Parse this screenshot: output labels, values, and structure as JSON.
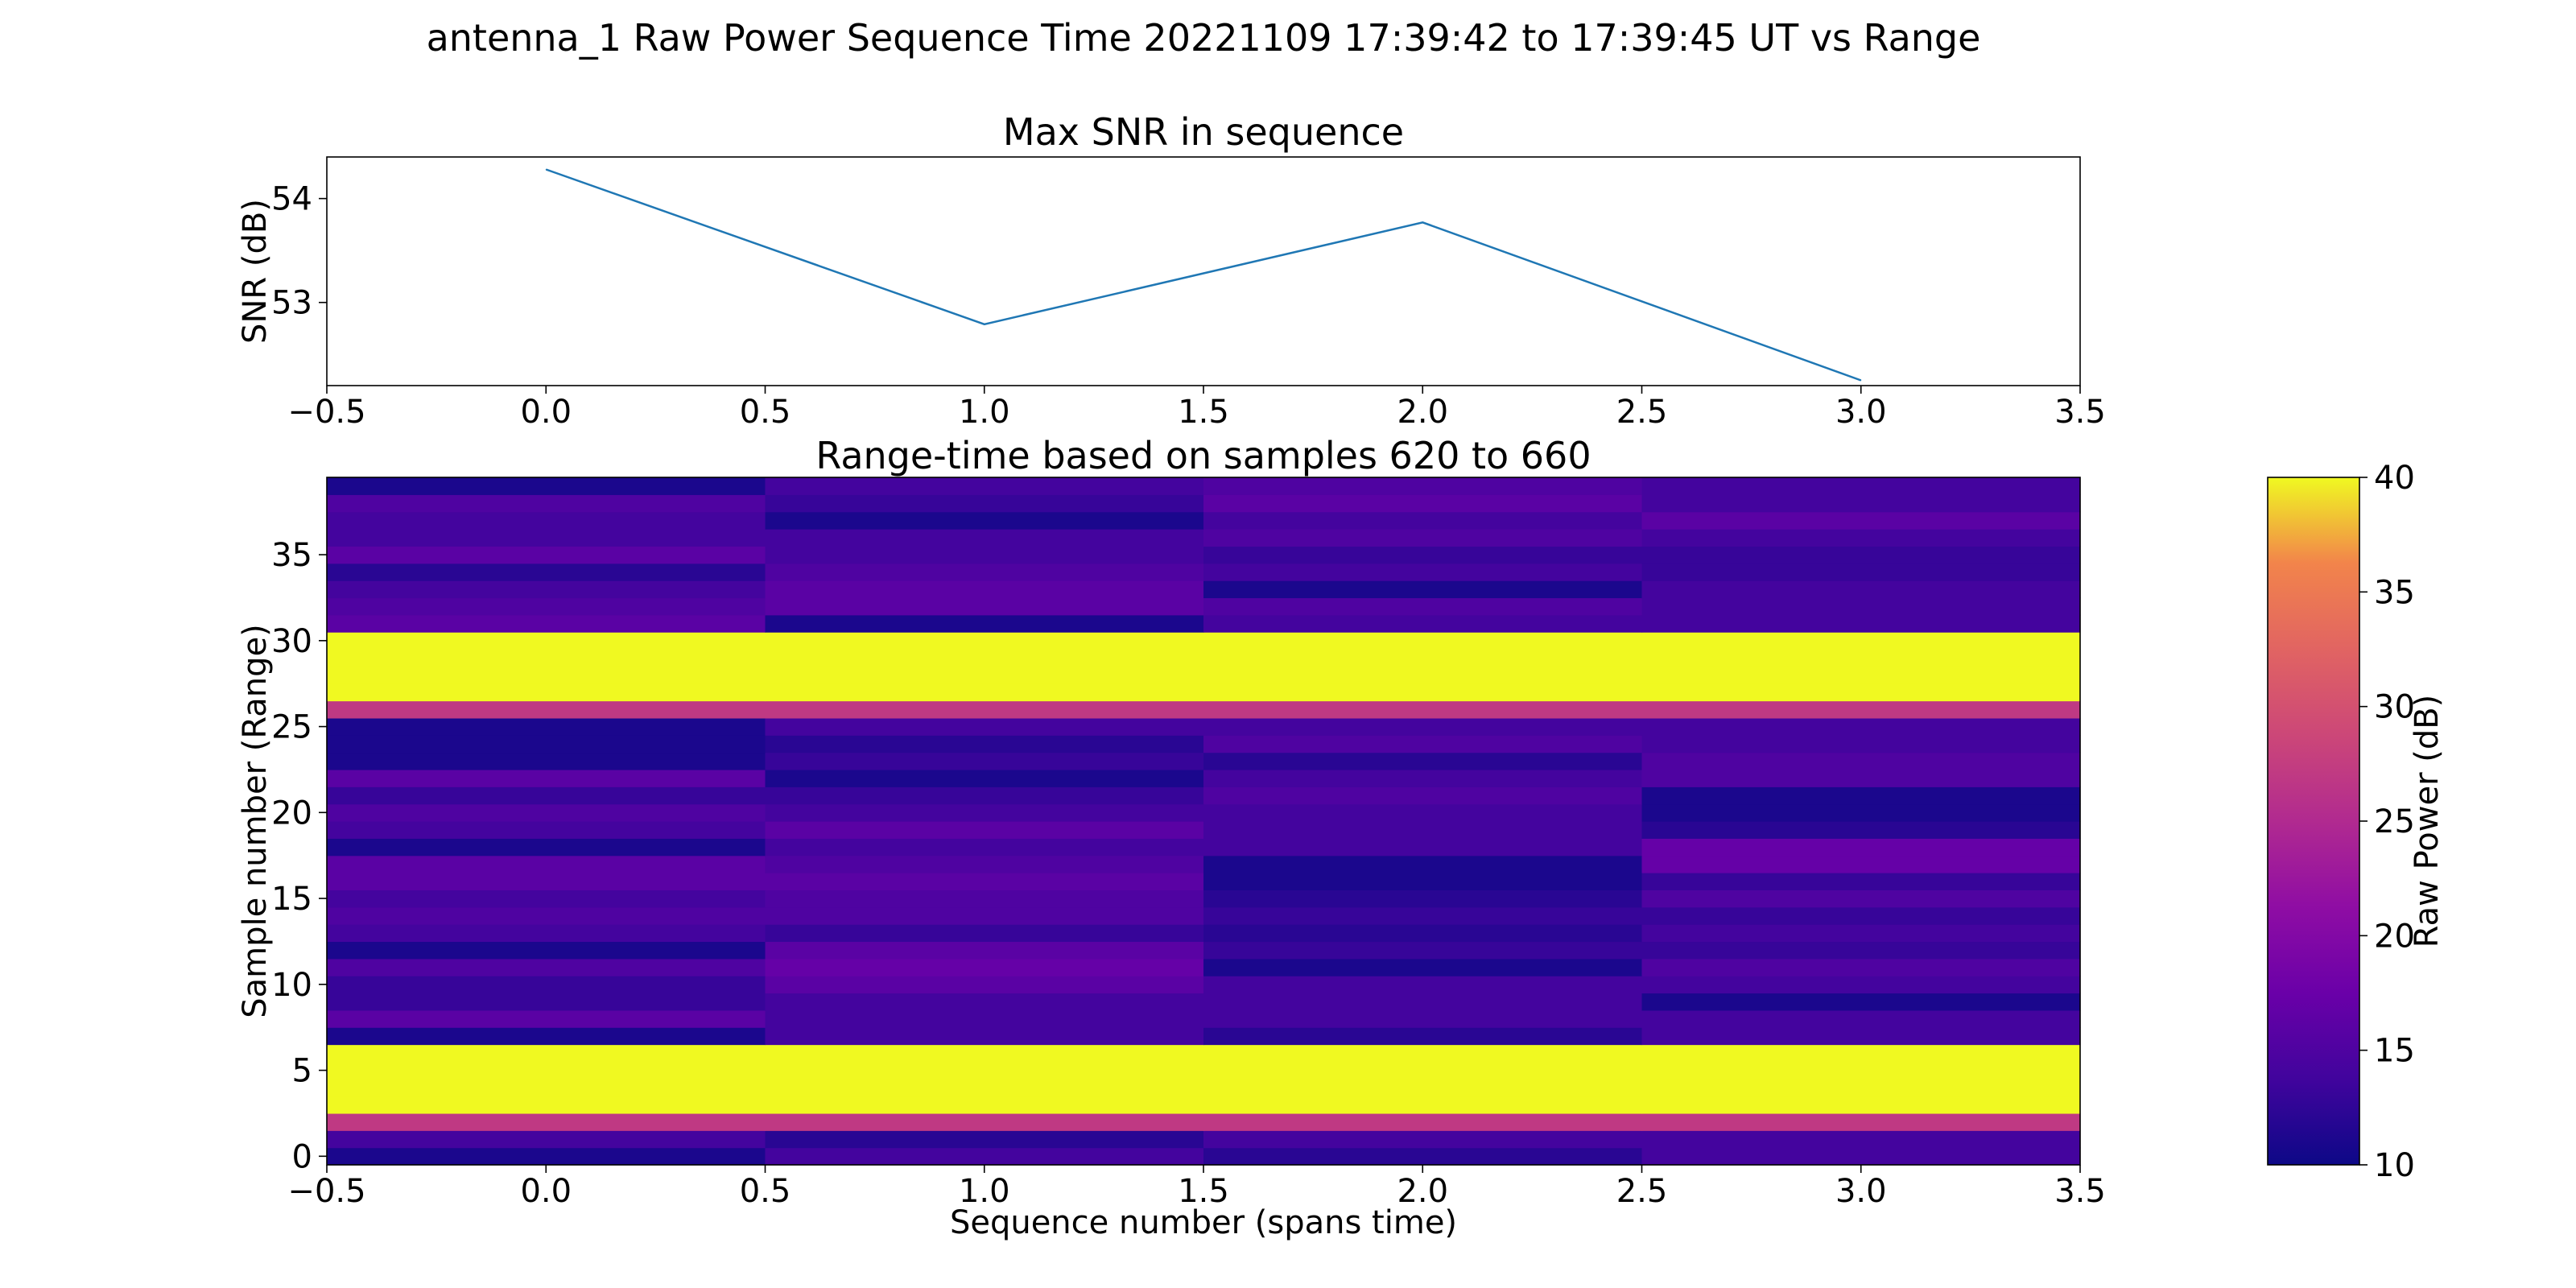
{
  "figure": {
    "suptitle": "antenna_1 Raw Power Sequence Time 20221109 17:39:42 to 17:39:45 UT vs Range"
  },
  "chart_data": [
    {
      "type": "line",
      "title": "Max SNR in sequence",
      "xlabel": "",
      "ylabel": "SNR (dB)",
      "xlim": [
        -0.5,
        3.5
      ],
      "ylim": [
        52.2,
        54.4
      ],
      "xticks": [
        -0.5,
        0.0,
        0.5,
        1.0,
        1.5,
        2.0,
        2.5,
        3.0,
        3.5
      ],
      "xtick_labels": [
        "−0.5",
        "0.0",
        "0.5",
        "1.0",
        "1.5",
        "2.0",
        "2.5",
        "3.0",
        "3.5"
      ],
      "yticks": [
        53,
        54
      ],
      "ytick_labels": [
        "53",
        "54"
      ],
      "grid": false,
      "color": "#1f77b4",
      "x": [
        0,
        1,
        2,
        3
      ],
      "y": [
        54.28,
        52.79,
        53.77,
        52.25
      ]
    },
    {
      "type": "heatmap",
      "title": "Range-time based on samples 620 to 660",
      "xlabel": "Sequence number (spans time)",
      "ylabel": "Sample number (Range)",
      "xlim": [
        -0.5,
        3.5
      ],
      "ylim": [
        -0.5,
        39.5
      ],
      "xticks": [
        -0.5,
        0.0,
        0.5,
        1.0,
        1.5,
        2.0,
        2.5,
        3.0,
        3.5
      ],
      "xtick_labels": [
        "−0.5",
        "0.0",
        "0.5",
        "1.0",
        "1.5",
        "2.0",
        "2.5",
        "3.0",
        "3.5"
      ],
      "yticks": [
        0,
        5,
        10,
        15,
        20,
        25,
        30,
        35
      ],
      "ytick_labels": [
        "0",
        "5",
        "10",
        "15",
        "20",
        "25",
        "30",
        "35"
      ],
      "colormap": "plasma",
      "colorbar": {
        "label": "Raw Power (dB)",
        "vmin": 10,
        "vmax": 40,
        "ticks": [
          10,
          15,
          20,
          25,
          30,
          35,
          40
        ],
        "tick_labels": [
          "10",
          "15",
          "20",
          "25",
          "30",
          "35",
          "40"
        ]
      },
      "columns": [
        0,
        1,
        2,
        3
      ],
      "rows": [
        0,
        1,
        2,
        3,
        4,
        5,
        6,
        7,
        8,
        9,
        10,
        11,
        12,
        13,
        14,
        15,
        16,
        17,
        18,
        19,
        20,
        21,
        22,
        23,
        24,
        25,
        26,
        27,
        28,
        29,
        30,
        31,
        32,
        33,
        34,
        35,
        36,
        37,
        38,
        39
      ],
      "values": [
        [
          11,
          14,
          12,
          14
        ],
        [
          14,
          12,
          14,
          14
        ],
        [
          27,
          27,
          27,
          27
        ],
        [
          40,
          40,
          40,
          40
        ],
        [
          40,
          40,
          40,
          40
        ],
        [
          40,
          40,
          40,
          40
        ],
        [
          40,
          40,
          40,
          40
        ],
        [
          11,
          14,
          12,
          14
        ],
        [
          16,
          14,
          14,
          14
        ],
        [
          13,
          14,
          14,
          11
        ],
        [
          13,
          16,
          14,
          14
        ],
        [
          15,
          17,
          11,
          15
        ],
        [
          11,
          16,
          13,
          13
        ],
        [
          14,
          13,
          12,
          14
        ],
        [
          15,
          15,
          13,
          13
        ],
        [
          14,
          15,
          12,
          15
        ],
        [
          16,
          16,
          11,
          13
        ],
        [
          16,
          15,
          11,
          17
        ],
        [
          11,
          14,
          14,
          17
        ],
        [
          14,
          16,
          14,
          12
        ],
        [
          15,
          14,
          14,
          11
        ],
        [
          13,
          13,
          15,
          11
        ],
        [
          16,
          11,
          14,
          15
        ],
        [
          11,
          13,
          12,
          15
        ],
        [
          11,
          12,
          15,
          14
        ],
        [
          11,
          14,
          14,
          14
        ],
        [
          27,
          27,
          27,
          27
        ],
        [
          40,
          40,
          40,
          40
        ],
        [
          40,
          40,
          40,
          40
        ],
        [
          40,
          40,
          40,
          40
        ],
        [
          40,
          40,
          40,
          40
        ],
        [
          16,
          11,
          14,
          14
        ],
        [
          15,
          16,
          15,
          14
        ],
        [
          14,
          16,
          11,
          14
        ],
        [
          12,
          15,
          14,
          13
        ],
        [
          16,
          14,
          13,
          13
        ],
        [
          14,
          14,
          15,
          14
        ],
        [
          14,
          11,
          14,
          16
        ],
        [
          15,
          13,
          16,
          14
        ],
        [
          11,
          14,
          15,
          14
        ]
      ]
    }
  ]
}
